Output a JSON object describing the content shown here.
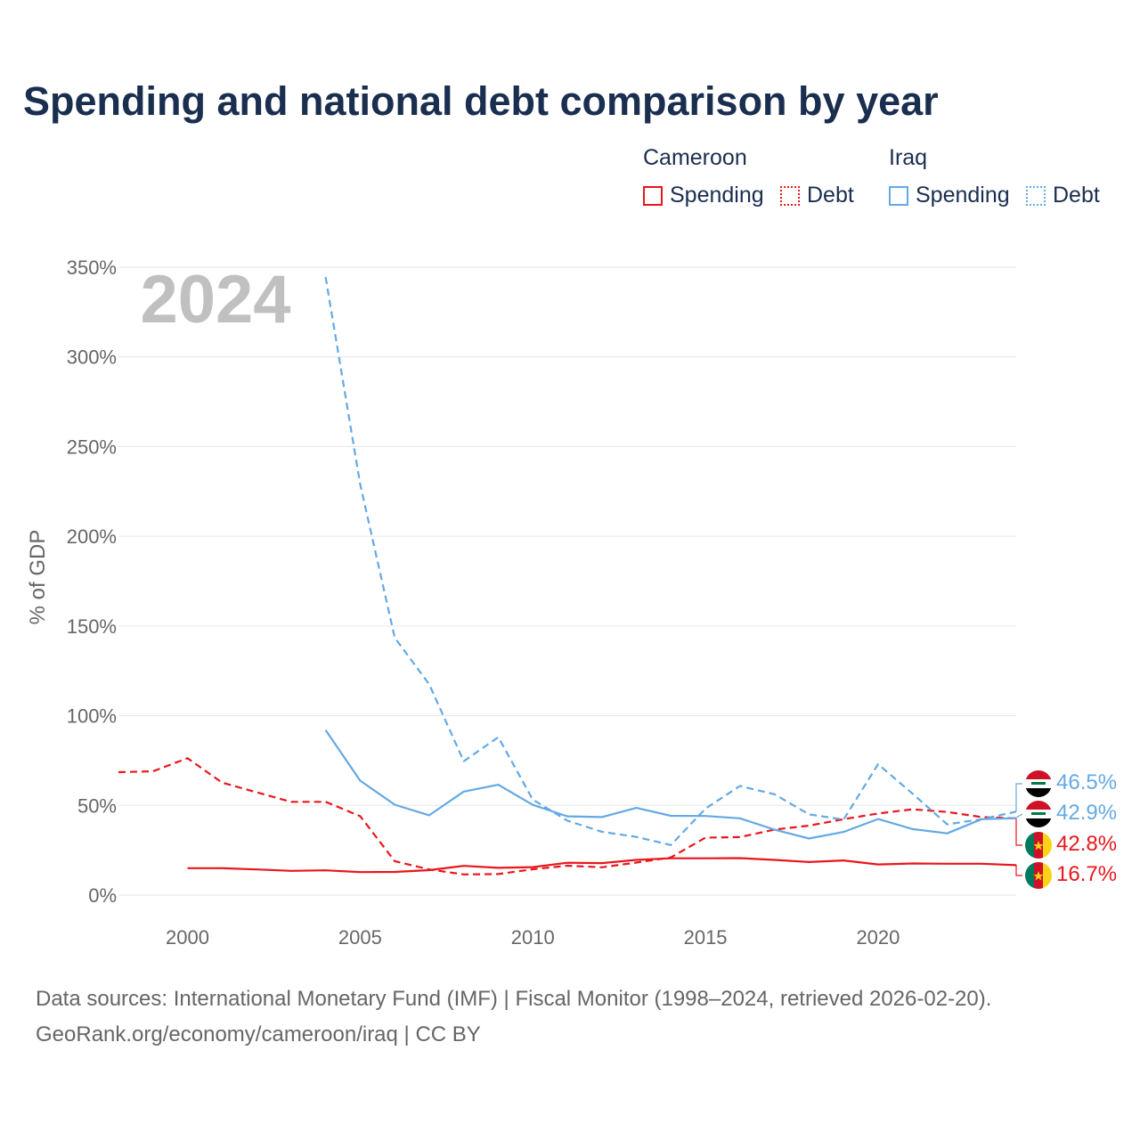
{
  "title": "Spending and national debt comparison by year",
  "legend": {
    "groups": [
      {
        "country": "Cameroon",
        "items": [
          "Spending",
          "Debt"
        ]
      },
      {
        "country": "Iraq",
        "items": [
          "Spending",
          "Debt"
        ]
      }
    ]
  },
  "colors": {
    "cameroon": "#e8161b",
    "iraq": "#64a9e3",
    "text": "#1a2e4f",
    "axis_text": "#666666",
    "year_watermark": "#c0c0c0",
    "grid": "#e6e6e6"
  },
  "year_label": "2024",
  "end_labels": [
    {
      "text": "46.5%",
      "country": "Iraq",
      "series": "Debt",
      "flag": "iraq-flag"
    },
    {
      "text": "42.9%",
      "country": "Iraq",
      "series": "Spending",
      "flag": "iraq-flag"
    },
    {
      "text": "42.8%",
      "country": "Cameroon",
      "series": "Debt",
      "flag": "cameroon-flag"
    },
    {
      "text": "16.7%",
      "country": "Cameroon",
      "series": "Spending",
      "flag": "cameroon-flag"
    }
  ],
  "source_lines": [
    "Data sources: International Monetary Fund (IMF) | Fiscal Monitor (1998–2024, retrieved 2026-02-20).",
    "GeoRank.org/economy/cameroon/iraq | CC BY"
  ],
  "chart_data": {
    "type": "line",
    "title": "Spending and national debt comparison by year",
    "xlabel": "",
    "ylabel": "% of GDP",
    "xlim": [
      1998,
      2024
    ],
    "ylim": [
      0,
      350
    ],
    "x_ticks": [
      2000,
      2005,
      2010,
      2015,
      2020
    ],
    "x_tick_labels": [
      "2000",
      "2005",
      "2010",
      "2015",
      "2020"
    ],
    "y_ticks": [
      0,
      50,
      100,
      150,
      200,
      250,
      300,
      350
    ],
    "y_tick_labels": [
      "0%",
      "50%",
      "100%",
      "150%",
      "200%",
      "250%",
      "300%",
      "350%"
    ],
    "grid": true,
    "series": [
      {
        "name": "Cameroon Spending",
        "country": "Cameroon",
        "kind": "Spending",
        "style": "solid",
        "color": "#e8161b",
        "x": [
          2000,
          2001,
          2002,
          2003,
          2004,
          2005,
          2006,
          2007,
          2008,
          2009,
          2010,
          2011,
          2012,
          2013,
          2014,
          2015,
          2016,
          2017,
          2018,
          2019,
          2020,
          2021,
          2022,
          2023,
          2024
        ],
        "values": [
          15,
          15,
          14.3,
          13.5,
          13.8,
          12.8,
          12.9,
          13.9,
          16.3,
          15.2,
          15.6,
          18,
          17.8,
          19.6,
          20.5,
          20.5,
          20.6,
          19.6,
          18.4,
          19.3,
          17.1,
          17.6,
          17.5,
          17.5,
          16.7
        ]
      },
      {
        "name": "Cameroon Debt",
        "country": "Cameroon",
        "kind": "Debt",
        "style": "dashed",
        "color": "#e8161b",
        "x": [
          1998,
          1999,
          2000,
          2001,
          2002,
          2003,
          2004,
          2005,
          2006,
          2007,
          2008,
          2009,
          2010,
          2011,
          2012,
          2013,
          2014,
          2015,
          2016,
          2017,
          2018,
          2019,
          2020,
          2021,
          2022,
          2023,
          2024
        ],
        "values": [
          68.5,
          69,
          76.3,
          62.7,
          57.3,
          52,
          52,
          44,
          18.9,
          14.3,
          11.5,
          11.7,
          14.4,
          16.4,
          15.5,
          18.1,
          21,
          32,
          32.3,
          36.5,
          38.7,
          42.3,
          45.5,
          47.8,
          46.3,
          43.5,
          42.8
        ]
      },
      {
        "name": "Iraq Spending",
        "country": "Iraq",
        "kind": "Spending",
        "style": "solid",
        "color": "#64a9e3",
        "x": [
          2004,
          2005,
          2006,
          2007,
          2008,
          2009,
          2010,
          2011,
          2012,
          2013,
          2014,
          2015,
          2016,
          2017,
          2018,
          2019,
          2020,
          2021,
          2022,
          2023,
          2024
        ],
        "values": [
          92,
          63.8,
          50.4,
          44.5,
          57.7,
          61.5,
          50.3,
          43.9,
          43.5,
          48.6,
          44.2,
          44.1,
          42.8,
          36.5,
          31.5,
          35.2,
          42.4,
          36.8,
          34.4,
          42.3,
          42.9
        ]
      },
      {
        "name": "Iraq Debt",
        "country": "Iraq",
        "kind": "Debt",
        "style": "dashed",
        "color": "#64a9e3",
        "x": [
          2004,
          2005,
          2006,
          2007,
          2008,
          2009,
          2010,
          2011,
          2012,
          2013,
          2014,
          2015,
          2016,
          2017,
          2018,
          2019,
          2020,
          2021,
          2022,
          2023,
          2024
        ],
        "values": [
          344.5,
          229,
          143.5,
          117.5,
          74.6,
          88,
          53.2,
          41.5,
          35.3,
          32.4,
          27.9,
          48.2,
          60.8,
          56.2,
          45,
          42.1,
          73,
          56.5,
          39.4,
          42.3,
          46.5
        ]
      }
    ]
  }
}
